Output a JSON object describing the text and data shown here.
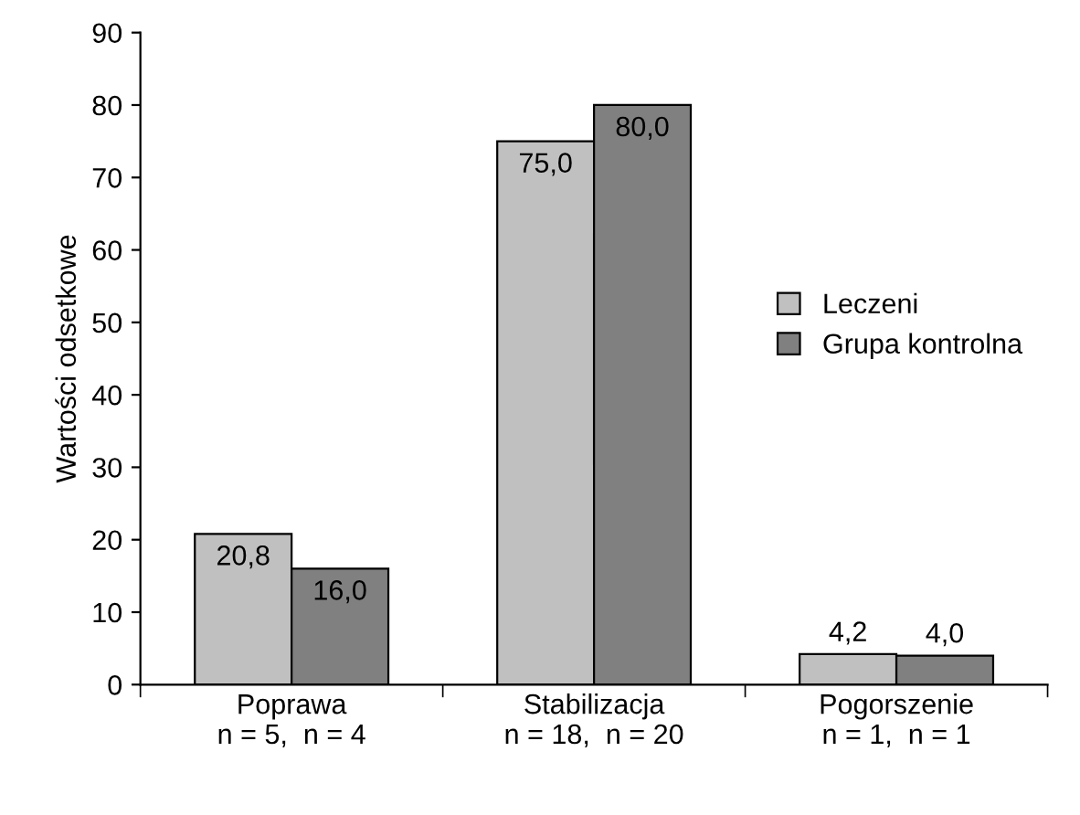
{
  "chart_data": {
    "type": "bar",
    "ylabel": "Wartości odsetkowe",
    "categories": [
      "Poprawa\nn = 5,  n = 4",
      "Stabilizacja\nn = 18,  n = 20",
      "Pogorszenie\nn = 1,  n = 1"
    ],
    "series": [
      {
        "name": "Leczeni",
        "color": "#c0c0c0",
        "values": [
          20.8,
          75.0,
          4.2
        ],
        "value_labels": [
          "20,8",
          "75,0",
          "4,2"
        ]
      },
      {
        "name": "Grupa kontrolna",
        "color": "#808080",
        "values": [
          16.0,
          80.0,
          4.0
        ],
        "value_labels": [
          "16,0",
          "80,0",
          "4,0"
        ]
      }
    ],
    "ylim": [
      0,
      90
    ],
    "yticks": [
      0,
      10,
      20,
      30,
      40,
      50,
      60,
      70,
      80,
      90
    ],
    "grid": false,
    "legend": "right"
  }
}
